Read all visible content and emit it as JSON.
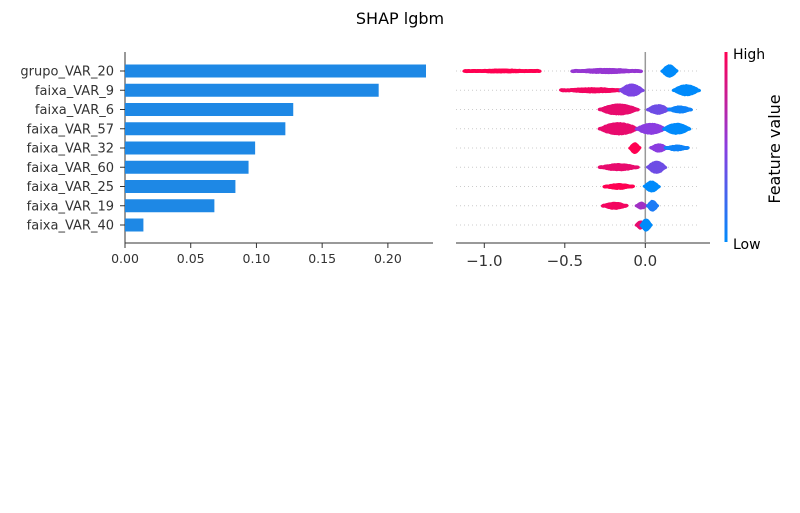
{
  "figure": {
    "title": "SHAP lgbm"
  },
  "chart_data": [
    {
      "type": "bar",
      "orientation": "horizontal",
      "categories": [
        "grupo_VAR_20",
        "faixa_VAR_9",
        "faixa_VAR_6",
        "faixa_VAR_57",
        "faixa_VAR_32",
        "faixa_VAR_60",
        "faixa_VAR_25",
        "faixa_VAR_19",
        "faixa_VAR_40"
      ],
      "values": [
        0.229,
        0.193,
        0.128,
        0.122,
        0.099,
        0.094,
        0.084,
        0.068,
        0.014
      ],
      "xlim": [
        0.0,
        0.235
      ],
      "xticks": [
        "0.00",
        "0.05",
        "0.10",
        "0.15",
        "0.20"
      ],
      "bar_color": "#1E88E5",
      "grid": false
    },
    {
      "type": "scatter",
      "subtype": "beeswarm",
      "categories": [
        "grupo_VAR_20",
        "faixa_VAR_9",
        "faixa_VAR_6",
        "faixa_VAR_57",
        "faixa_VAR_32",
        "faixa_VAR_60",
        "faixa_VAR_25",
        "faixa_VAR_19",
        "faixa_VAR_40"
      ],
      "xlim": [
        -1.2,
        0.4
      ],
      "xticks": [
        "−1.0",
        "−0.5",
        "0.0"
      ],
      "reference_line": 0.0,
      "series": [
        {
          "category": "grupo_VAR_20",
          "clusters": [
            {
              "min": -1.12,
              "max": -0.66,
              "feature": 1.0,
              "spread": 0.35
            },
            {
              "min": -0.45,
              "max": -0.03,
              "feature": 0.55,
              "spread": 0.45
            },
            {
              "min": 0.11,
              "max": 0.19,
              "feature": 0.0,
              "spread": 1.0
            }
          ]
        },
        {
          "category": "faixa_VAR_9",
          "clusters": [
            {
              "min": -0.52,
              "max": -0.12,
              "feature": 0.95,
              "spread": 0.45
            },
            {
              "min": -0.15,
              "max": -0.02,
              "feature": 0.45,
              "spread": 1.0
            },
            {
              "min": 0.18,
              "max": 0.33,
              "feature": 0.0,
              "spread": 0.9
            }
          ]
        },
        {
          "category": "faixa_VAR_6",
          "clusters": [
            {
              "min": -0.28,
              "max": -0.05,
              "feature": 0.9,
              "spread": 0.9
            },
            {
              "min": 0.02,
              "max": 0.14,
              "feature": 0.4,
              "spread": 0.8
            },
            {
              "min": 0.15,
              "max": 0.28,
              "feature": 0.05,
              "spread": 0.6
            }
          ]
        },
        {
          "category": "faixa_VAR_57",
          "clusters": [
            {
              "min": -0.28,
              "max": -0.05,
              "feature": 0.9,
              "spread": 1.0
            },
            {
              "min": -0.05,
              "max": 0.12,
              "feature": 0.5,
              "spread": 0.9
            },
            {
              "min": 0.12,
              "max": 0.27,
              "feature": 0.0,
              "spread": 0.9
            }
          ]
        },
        {
          "category": "faixa_VAR_32",
          "clusters": [
            {
              "min": -0.09,
              "max": -0.04,
              "feature": 1.0,
              "spread": 0.9
            },
            {
              "min": 0.04,
              "max": 0.13,
              "feature": 0.5,
              "spread": 0.7
            },
            {
              "min": 0.13,
              "max": 0.26,
              "feature": 0.05,
              "spread": 0.5
            }
          ]
        },
        {
          "category": "faixa_VAR_60",
          "clusters": [
            {
              "min": -0.28,
              "max": -0.05,
              "feature": 0.9,
              "spread": 0.6
            },
            {
              "min": 0.02,
              "max": 0.12,
              "feature": 0.4,
              "spread": 1.0
            }
          ]
        },
        {
          "category": "faixa_VAR_25",
          "clusters": [
            {
              "min": -0.25,
              "max": -0.08,
              "feature": 1.0,
              "spread": 0.5
            },
            {
              "min": 0.0,
              "max": 0.08,
              "feature": 0.0,
              "spread": 0.9
            }
          ]
        },
        {
          "category": "faixa_VAR_19",
          "clusters": [
            {
              "min": -0.26,
              "max": -0.12,
              "feature": 0.95,
              "spread": 0.6
            },
            {
              "min": -0.05,
              "max": 0.0,
              "feature": 0.6,
              "spread": 0.6
            },
            {
              "min": 0.02,
              "max": 0.07,
              "feature": 0.1,
              "spread": 0.9
            }
          ]
        },
        {
          "category": "faixa_VAR_40",
          "clusters": [
            {
              "min": -0.05,
              "max": -0.01,
              "feature": 0.9,
              "spread": 0.7
            },
            {
              "min": -0.02,
              "max": 0.03,
              "feature": 0.0,
              "spread": 1.0
            }
          ]
        }
      ],
      "colorbar": {
        "label": "Feature value",
        "high_label": "High",
        "low_label": "Low",
        "high_color": "#FF0052",
        "low_color": "#008BFB"
      }
    }
  ]
}
